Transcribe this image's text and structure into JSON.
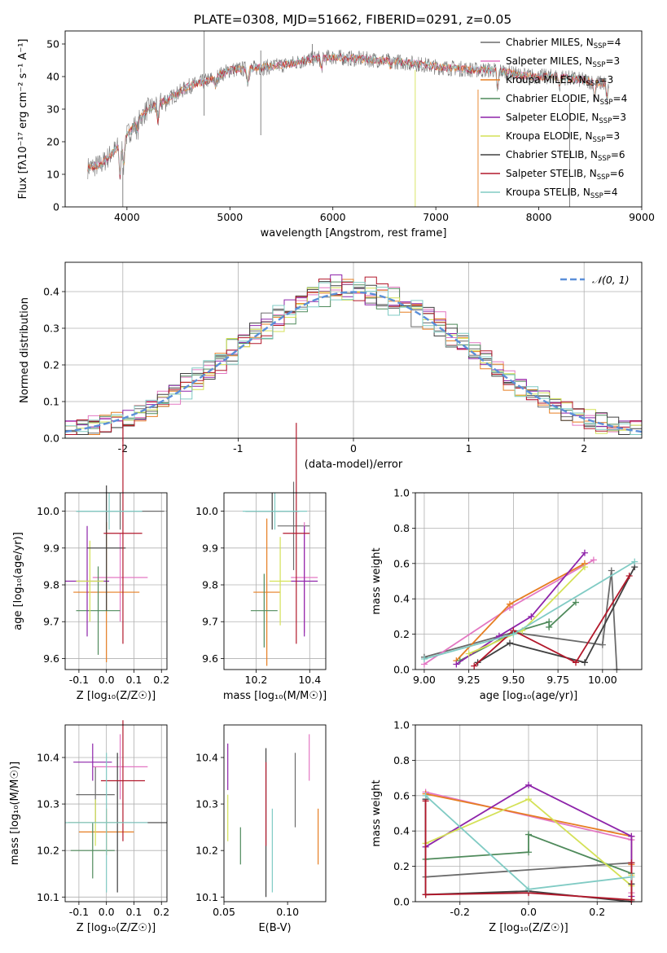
{
  "figure": {
    "title": "PLATE=0308, MJD=51662, FIBERID=0291, z=0.05"
  },
  "model_colors": [
    "#6b6b6b",
    "#e377c2",
    "#e67e22",
    "#4f8a5b",
    "#8e24aa",
    "#d4e157",
    "#404040",
    "#b2182b",
    "#80cbc4"
  ],
  "chart_data": [
    {
      "id": "spectrum",
      "type": "line",
      "xlabel": "wavelength [Angstrom, rest frame]",
      "ylabel": "Flux [fλ10⁻¹⁷ erg cm⁻² s⁻¹ A⁻¹]",
      "xlim": [
        3400,
        9000
      ],
      "ylim": [
        0,
        54
      ],
      "xticks": [
        4000,
        5000,
        6000,
        7000,
        8000,
        9000
      ],
      "yticks": [
        0,
        10,
        20,
        30,
        40,
        50
      ],
      "continuum": {
        "x": [
          3620,
          3750,
          3900,
          4050,
          4200,
          4400,
          4600,
          4800,
          5000,
          5200,
          5400,
          5600,
          5800,
          6000,
          6200,
          6500,
          6800,
          7000,
          7200,
          7400,
          7600,
          7800,
          8000,
          8200,
          8400,
          8600,
          8680
        ],
        "y": [
          12,
          13,
          18,
          24,
          30,
          33,
          37,
          39,
          42,
          42.5,
          43,
          44,
          45.5,
          46,
          45.5,
          45,
          44,
          43,
          42.5,
          42,
          42,
          40.5,
          40,
          40,
          39,
          38,
          38
        ]
      },
      "legend": [
        {
          "label": "Chabrier MILES",
          "n": "4"
        },
        {
          "label": "Salpeter MILES",
          "n": "3"
        },
        {
          "label": "Kroupa MILES",
          "n": "3"
        },
        {
          "label": "Chabrier ELODIE",
          "n": "4"
        },
        {
          "label": "Salpeter ELODIE",
          "n": "3"
        },
        {
          "label": "Kroupa ELODIE",
          "n": "3"
        },
        {
          "label": "Chabrier STELIB",
          "n": "6"
        },
        {
          "label": "Salpeter STELIB",
          "n": "6"
        },
        {
          "label": "Kroupa STELIB",
          "n": "4"
        }
      ],
      "legend_placement": "upper-right"
    },
    {
      "id": "residuals",
      "type": "histogram",
      "xlabel": "(data-model)/error",
      "ylabel": "Normed distribution",
      "xlim": [
        -2.5,
        2.5
      ],
      "ylim": [
        0,
        0.48
      ],
      "xticks": [
        -2,
        -1,
        0,
        1,
        2
      ],
      "yticks": [
        0.0,
        0.1,
        0.2,
        0.3,
        0.4
      ],
      "bins": 50,
      "grid": true,
      "reference": {
        "label": "𝒩(0, 1)",
        "mean": 0,
        "sigma": 1
      },
      "legend_placement": "upper-right"
    },
    {
      "id": "z-age",
      "type": "errorbar",
      "xlabel": "Z [log₁₀(Z/Z☉)]",
      "ylabel": "age  [log₁₀(age/yr)]",
      "xlim": [
        -0.15,
        0.22
      ],
      "ylim": [
        9.57,
        10.05
      ],
      "xticks": [
        -0.1,
        0.0,
        0.1,
        0.2
      ],
      "yticks": [
        9.6,
        9.7,
        9.8,
        9.9,
        10.0
      ],
      "grid": true,
      "points": [
        {
          "x": 0.05,
          "y": 10.0,
          "xerr": 0.16,
          "yerr": 0.05
        },
        {
          "x": 0.05,
          "y": 9.82,
          "xerr": 0.1,
          "yerr": 0.12
        },
        {
          "x": 0.0,
          "y": 9.78,
          "xerr": 0.12,
          "yerr": 0.19
        },
        {
          "x": -0.03,
          "y": 9.73,
          "xerr": 0.08,
          "yerr": 0.12
        },
        {
          "x": -0.07,
          "y": 9.81,
          "xerr": 0.08,
          "yerr": 0.15
        },
        {
          "x": -0.06,
          "y": 9.81,
          "xerr": 0.05,
          "yerr": 0.11
        },
        {
          "x": 0.0,
          "y": 9.9,
          "xerr": 0.07,
          "yerr": 0.17
        },
        {
          "x": 0.06,
          "y": 9.94,
          "xerr": 0.07,
          "yerr": 0.3
        },
        {
          "x": 0.01,
          "y": 10.0,
          "xerr": 0.12,
          "yerr": 0.05
        }
      ]
    },
    {
      "id": "mass-age",
      "type": "errorbar",
      "xlabel": "mass [log₁₀(M/M☉)]",
      "ylabel": "",
      "xlim": [
        10.08,
        10.46
      ],
      "ylim": [
        9.57,
        10.05
      ],
      "xticks": [
        10.2,
        10.4
      ],
      "yticks": [
        9.6,
        9.7,
        9.8,
        9.9,
        10.0
      ],
      "grid": true,
      "points": [
        {
          "x": 10.34,
          "y": 9.96,
          "xerr": 0.06,
          "yerr": 0.12
        },
        {
          "x": 10.38,
          "y": 9.82,
          "xerr": 0.05,
          "yerr": 0.15
        },
        {
          "x": 10.24,
          "y": 9.78,
          "xerr": 0.05,
          "yerr": 0.2
        },
        {
          "x": 10.23,
          "y": 9.73,
          "xerr": 0.05,
          "yerr": 0.1
        },
        {
          "x": 10.38,
          "y": 9.81,
          "xerr": 0.05,
          "yerr": 0.15
        },
        {
          "x": 10.29,
          "y": 9.81,
          "xerr": 0.04,
          "yerr": 0.12
        },
        {
          "x": 10.26,
          "y": 10.0,
          "xerr": 0.1,
          "yerr": 0.05
        },
        {
          "x": 10.35,
          "y": 9.94,
          "xerr": 0.05,
          "yerr": 0.3
        },
        {
          "x": 10.27,
          "y": 10.0,
          "xerr": 0.12,
          "yerr": 0.05
        }
      ]
    },
    {
      "id": "age-weight",
      "type": "line",
      "xlabel": "age  [log₁₀(age/yr)]",
      "ylabel": "mass weight",
      "xlim": [
        8.95,
        10.22
      ],
      "ylim": [
        0,
        1.0
      ],
      "xticks": [
        9.0,
        9.25,
        9.5,
        9.75,
        10.0
      ],
      "yticks": [
        0.0,
        0.2,
        0.4,
        0.6,
        0.8,
        1.0
      ],
      "grid": true,
      "series": [
        {
          "x": [
            9.0,
            9.5,
            10.0,
            10.05,
            10.08
          ],
          "y": [
            0.07,
            0.21,
            0.14,
            0.56,
            0.0
          ]
        },
        {
          "x": [
            9.0,
            9.48,
            9.95
          ],
          "y": [
            0.03,
            0.35,
            0.62
          ]
        },
        {
          "x": [
            9.18,
            9.48,
            9.9
          ],
          "y": [
            0.05,
            0.37,
            0.6
          ]
        },
        {
          "x": [
            9.2,
            9.5,
            9.7,
            9.7,
            9.85
          ],
          "y": [
            0.05,
            0.21,
            0.27,
            0.24,
            0.38
          ]
        },
        {
          "x": [
            9.18,
            9.42,
            9.6,
            9.9
          ],
          "y": [
            0.03,
            0.19,
            0.3,
            0.66
          ]
        },
        {
          "x": [
            9.25,
            9.55,
            9.9
          ],
          "y": [
            0.09,
            0.22,
            0.58
          ]
        },
        {
          "x": [
            9.3,
            9.48,
            9.9,
            10.18
          ],
          "y": [
            0.04,
            0.15,
            0.04,
            0.58
          ]
        },
        {
          "x": [
            9.28,
            9.5,
            9.85,
            10.15
          ],
          "y": [
            0.02,
            0.22,
            0.04,
            0.53
          ]
        },
        {
          "x": [
            9.0,
            9.5,
            10.18
          ],
          "y": [
            0.06,
            0.2,
            0.61
          ]
        }
      ]
    },
    {
      "id": "z-mass",
      "type": "errorbar",
      "xlabel": "Z [log₁₀(Z/Z☉)]",
      "ylabel": "mass [log₁₀(M/M☉)]",
      "xlim": [
        -0.15,
        0.22
      ],
      "ylim": [
        10.09,
        10.47
      ],
      "xticks": [
        -0.1,
        0.0,
        0.1,
        0.2
      ],
      "yticks": [
        10.1,
        10.2,
        10.3,
        10.4
      ],
      "grid": true,
      "points": [
        {
          "x": -0.04,
          "y": 10.32,
          "xerr": 0.07,
          "yerr": 0.06
        },
        {
          "x": 0.05,
          "y": 10.38,
          "xerr": 0.1,
          "yerr": 0.07
        },
        {
          "x": 0.0,
          "y": 10.24,
          "xerr": 0.1,
          "yerr": 0.05
        },
        {
          "x": -0.05,
          "y": 10.2,
          "xerr": 0.08,
          "yerr": 0.06
        },
        {
          "x": -0.05,
          "y": 10.39,
          "xerr": 0.07,
          "yerr": 0.04
        },
        {
          "x": -0.04,
          "y": 10.26,
          "xerr": 0.1,
          "yerr": 0.05
        },
        {
          "x": 0.04,
          "y": 10.26,
          "xerr": 0.18,
          "yerr": 0.15
        },
        {
          "x": 0.06,
          "y": 10.35,
          "xerr": 0.08,
          "yerr": 0.13
        },
        {
          "x": 0.0,
          "y": 10.26,
          "xerr": 0.15,
          "yerr": 0.15
        }
      ]
    },
    {
      "id": "ebv-mass",
      "type": "errorbar",
      "xlabel": "E(B-V)",
      "ylabel": "",
      "xlim": [
        0.05,
        0.13
      ],
      "ylim": [
        10.09,
        10.47
      ],
      "xticks": [
        0.05,
        0.1
      ],
      "yticks": [
        10.1,
        10.2,
        10.3,
        10.4
      ],
      "grid": false,
      "points": [
        {
          "x": 0.106,
          "y": 10.33,
          "xerr": 0,
          "yerr": 0.08
        },
        {
          "x": 0.117,
          "y": 10.4,
          "xerr": 0,
          "yerr": 0.05
        },
        {
          "x": 0.124,
          "y": 10.23,
          "xerr": 0,
          "yerr": 0.06
        },
        {
          "x": 0.063,
          "y": 10.21,
          "xerr": 0,
          "yerr": 0.04
        },
        {
          "x": 0.053,
          "y": 10.38,
          "xerr": 0,
          "yerr": 0.05
        },
        {
          "x": 0.053,
          "y": 10.27,
          "xerr": 0,
          "yerr": 0.05
        },
        {
          "x": 0.083,
          "y": 10.26,
          "xerr": 0,
          "yerr": 0.16
        },
        {
          "x": 0.083,
          "y": 10.3,
          "xerr": 0,
          "yerr": 0.09
        },
        {
          "x": 0.088,
          "y": 10.2,
          "xerr": 0,
          "yerr": 0.09
        }
      ]
    },
    {
      "id": "z-weight",
      "type": "line",
      "xlabel": "Z [log₁₀(Z/Z☉)]",
      "ylabel": "mass weight",
      "xlim": [
        -0.33,
        0.33
      ],
      "ylim": [
        0,
        1.0
      ],
      "xticks": [
        -0.2,
        0.0,
        0.2
      ],
      "yticks": [
        0.0,
        0.2,
        0.4,
        0.6,
        0.8,
        1.0
      ],
      "grid": true,
      "series": [
        {
          "x": [
            -0.3,
            -0.3,
            0.3
          ],
          "y": [
            0.58,
            0.14,
            0.22
          ]
        },
        {
          "x": [
            -0.3,
            0.3,
            0.3
          ],
          "y": [
            0.62,
            0.35,
            0.05
          ]
        },
        {
          "x": [
            -0.3,
            0.3,
            0.3
          ],
          "y": [
            0.61,
            0.37,
            0.21
          ]
        },
        {
          "x": [
            -0.3,
            0.0,
            0.0,
            0.3
          ],
          "y": [
            0.24,
            0.28,
            0.38,
            0.16
          ]
        },
        {
          "x": [
            -0.3,
            0.0,
            0.3,
            0.3
          ],
          "y": [
            0.31,
            0.66,
            0.37,
            0.03
          ]
        },
        {
          "x": [
            -0.3,
            0.0,
            0.3,
            0.3
          ],
          "y": [
            0.33,
            0.58,
            0.09,
            0.15
          ]
        },
        {
          "x": [
            -0.3,
            -0.3,
            0.0,
            0.3,
            0.3
          ],
          "y": [
            0.58,
            0.04,
            0.06,
            0.0,
            0.1
          ]
        },
        {
          "x": [
            -0.3,
            -0.3,
            0.0,
            0.3,
            0.3
          ],
          "y": [
            0.57,
            0.04,
            0.05,
            0.01,
            0.22
          ]
        },
        {
          "x": [
            -0.3,
            0.0,
            0.3
          ],
          "y": [
            0.6,
            0.07,
            0.14
          ]
        }
      ]
    }
  ]
}
